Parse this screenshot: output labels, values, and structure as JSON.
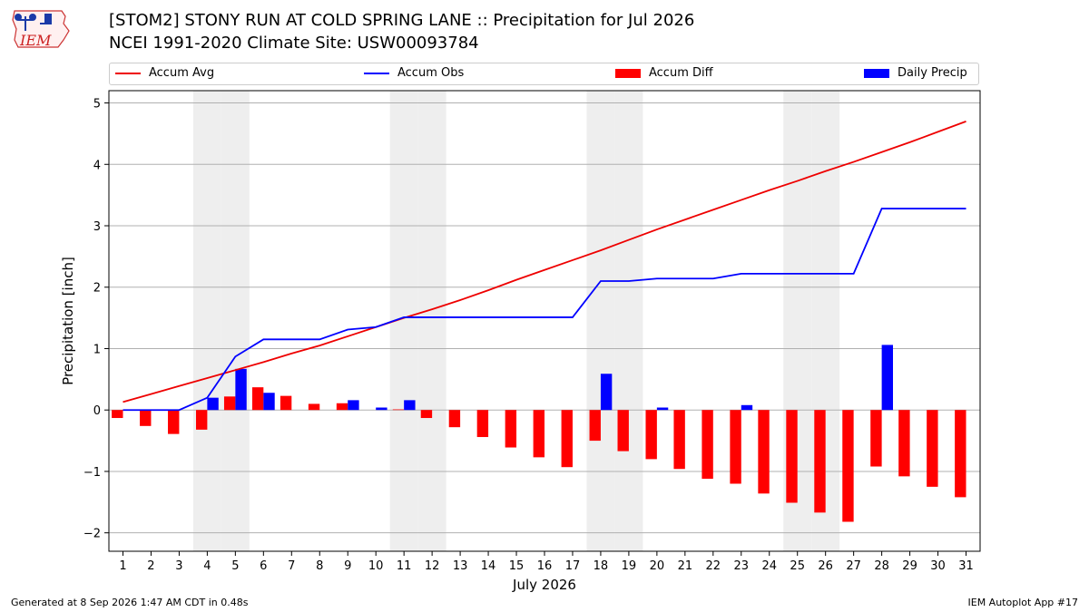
{
  "logo": {
    "text": "IEM"
  },
  "title": {
    "line1": "[STOM2] STONY RUN AT COLD SPRING LANE :: Precipitation for Jul 2026",
    "line2": "NCEI 1991-2020 Climate Site: USW00093784"
  },
  "footer": {
    "left": "Generated at 8 Sep 2026 1:47 AM CDT in 0.48s",
    "right": "IEM Autoplot App #17"
  },
  "colors": {
    "accum_avg": "#ee0000",
    "accum_obs": "#0000ff",
    "accum_diff": "#ff0000",
    "daily_precip": "#0000ff",
    "weekend_band": "#eeeeee",
    "grid": "#b0b0b0"
  },
  "chart_data": {
    "type": "bar",
    "xlabel": "July 2026",
    "ylabel": "Precipitation [inch]",
    "xlim": [
      0.5,
      31.5
    ],
    "ylim": [
      -2.3,
      5.2
    ],
    "yticks": [
      -2,
      -1,
      0,
      1,
      2,
      3,
      4,
      5
    ],
    "ytick_labels": [
      "−2",
      "−1",
      "0",
      "1",
      "2",
      "3",
      "4",
      "5"
    ],
    "grid": "horizontal",
    "legend_position": "top",
    "weekend_days": [
      4,
      5,
      11,
      12,
      18,
      19,
      25,
      26
    ],
    "days": [
      1,
      2,
      3,
      4,
      5,
      6,
      7,
      8,
      9,
      10,
      11,
      12,
      13,
      14,
      15,
      16,
      17,
      18,
      19,
      20,
      21,
      22,
      23,
      24,
      25,
      26,
      27,
      28,
      29,
      30,
      31
    ],
    "series": [
      {
        "name": "Accum Avg",
        "kind": "line",
        "values": [
          0.13,
          0.26,
          0.39,
          0.52,
          0.65,
          0.78,
          0.92,
          1.05,
          1.2,
          1.35,
          1.5,
          1.64,
          1.79,
          1.95,
          2.12,
          2.28,
          2.44,
          2.6,
          2.77,
          2.94,
          3.1,
          3.26,
          3.42,
          3.58,
          3.73,
          3.89,
          4.04,
          4.2,
          4.36,
          4.53,
          4.7
        ]
      },
      {
        "name": "Accum Obs",
        "kind": "line",
        "values": [
          0.0,
          0.0,
          0.0,
          0.2,
          0.87,
          1.15,
          1.15,
          1.15,
          1.31,
          1.35,
          1.51,
          1.51,
          1.51,
          1.51,
          1.51,
          1.51,
          1.51,
          2.1,
          2.1,
          2.14,
          2.14,
          2.14,
          2.22,
          2.22,
          2.22,
          2.22,
          2.22,
          3.28,
          3.28,
          3.28,
          3.28
        ]
      },
      {
        "name": "Accum Diff",
        "kind": "bar",
        "values": [
          -0.13,
          -0.26,
          -0.39,
          -0.32,
          0.22,
          0.37,
          0.23,
          0.1,
          0.11,
          0.0,
          0.01,
          -0.13,
          -0.28,
          -0.44,
          -0.61,
          -0.77,
          -0.93,
          -0.5,
          -0.67,
          -0.8,
          -0.96,
          -1.12,
          -1.2,
          -1.36,
          -1.51,
          -1.67,
          -1.82,
          -0.92,
          -1.08,
          -1.25,
          -1.42
        ]
      },
      {
        "name": "Daily Precip",
        "kind": "bar",
        "values": [
          0.0,
          0.0,
          0.0,
          0.2,
          0.67,
          0.28,
          0.0,
          0.0,
          0.16,
          0.04,
          0.16,
          0.0,
          0.0,
          0.0,
          0.0,
          0.0,
          0.0,
          0.59,
          0.0,
          0.04,
          0.0,
          0.0,
          0.08,
          0.0,
          0.0,
          0.0,
          0.0,
          1.06,
          0.0,
          0.0,
          0.0
        ]
      }
    ]
  }
}
